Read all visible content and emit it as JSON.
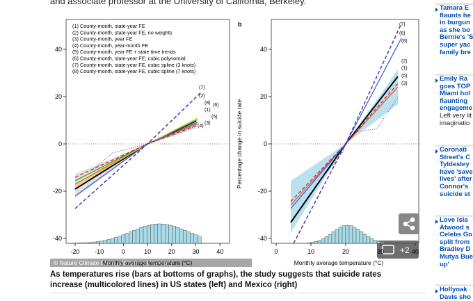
{
  "article": {
    "intro": "and associate professor at the University of California, Berkeley."
  },
  "figure": {
    "panel_a": {
      "legend": [
        "(1) County-month, state-year FE",
        "(2) County-month, state-year FE, no weights",
        "(3) County-month, year FE",
        "(4) County-month, year-month FE",
        "(5) County-month, year FE + state time trends",
        "(6) County-month, state-year FE, cubic polynomial",
        "(7) County-month, state-year FE, cubic spline (3 knots)",
        "(8) County-month, state-year FE, cubic spline (7 knots)"
      ],
      "line_labels": [
        "(7)",
        "(2)",
        "(8)",
        "(6)",
        "(1)",
        "(5)",
        "(3)",
        "(4)"
      ],
      "xticks": [
        -20,
        -10,
        0,
        10,
        20,
        30,
        40
      ],
      "yticks": [
        40,
        20,
        0,
        -20,
        -40
      ],
      "xlabel": "Monthly average temperature (°C)"
    },
    "panel_b": {
      "label": "b",
      "ylabel": "Percentage change in suicide rate",
      "line_labels": [
        "(7)",
        "(6)",
        "(8)",
        "(2)",
        "(1)",
        "(5)",
        "(3)"
      ],
      "xticks": [
        0,
        10,
        20,
        30,
        40
      ],
      "yticks": [
        40,
        20,
        0,
        -20,
        -40
      ],
      "xlabel": "Monthly average temperature (°C)"
    },
    "credit": "© Nature Climate Change/Stanford University",
    "photo_count": "+2"
  },
  "caption": "As temperatures rise (bars at bottoms of graphs), the study suggests that suicide rates increase (multicolored lines) in US states (left) and Mexico (right)",
  "sidebar": [
    {
      "title": [
        "Tamara E",
        "flaunts he",
        "in burgun",
        "as she bo",
        "Bernie's 'S",
        "super yac",
        "family bre"
      ],
      "text": []
    },
    {
      "title": [
        "Emily Ra",
        "goes TOP",
        "Miami hol",
        "flaunting",
        "engageme"
      ],
      "text": [
        "Left very lit",
        "imaginatio"
      ]
    },
    {
      "title": [
        "Coronati",
        "Street's C",
        "Tyldesley",
        "have 'save",
        "lives' after",
        "Connor's",
        "suicide st"
      ],
      "text": []
    },
    {
      "title": [
        "Love Isla",
        "Atwood s",
        "Celebs Go",
        "split from",
        "Bradley D",
        "Mutya Bue",
        "up'"
      ],
      "text": []
    },
    {
      "title": [
        "Hollyoak",
        "Davis sho"
      ],
      "text": []
    }
  ]
}
